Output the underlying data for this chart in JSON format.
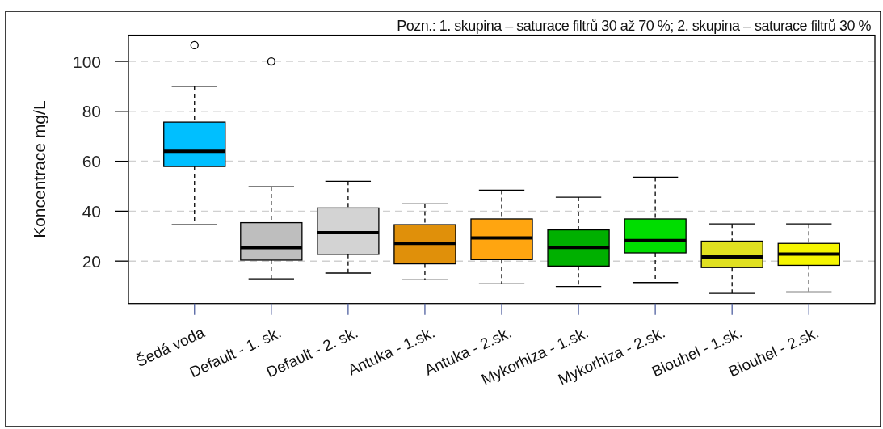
{
  "chart_data": {
    "type": "box",
    "ylabel": "Koncentrace mg/L",
    "annotations": [
      "Pozn.: 1. skupina – saturace filtrů 30 až 70 %; 2. skupina – saturace filtrů 30 %"
    ],
    "categories": [
      "Šedá voda",
      "Default - 1. sk.",
      "Default - 2. sk.",
      "Antuka - 1.sk.",
      "Antuka - 2.sk.",
      "Mykorhiza - 1.sk.",
      "Mykorhiza - 2.sk.",
      "Biouhel - 1.sk.",
      "Biouhel - 2.sk."
    ],
    "colors": [
      "#00bfff",
      "#bebebe",
      "#d3d3d3",
      "#e0900a",
      "#ffa510",
      "#00b000",
      "#00dd00",
      "#e0e020",
      "#f5f500"
    ],
    "boxes": [
      {
        "low": 34.6,
        "q1": 57.9,
        "median": 64,
        "q3": 75.7,
        "high": 90,
        "outliers": [
          106.5
        ]
      },
      {
        "low": 12.9,
        "q1": 20.4,
        "median": 25.4,
        "q3": 35.4,
        "high": 49.8,
        "outliers": [
          100
        ]
      },
      {
        "low": 15.2,
        "q1": 22.7,
        "median": 31.4,
        "q3": 41.3,
        "high": 52
      },
      {
        "low": 12.5,
        "q1": 18.9,
        "median": 27.1,
        "q3": 34.6,
        "high": 42.9
      },
      {
        "low": 10.9,
        "q1": 20.6,
        "median": 29.3,
        "q3": 36.9,
        "high": 48.4
      },
      {
        "low": 9.8,
        "q1": 18,
        "median": 25.5,
        "q3": 32.5,
        "high": 45.6
      },
      {
        "low": 11.4,
        "q1": 23.3,
        "median": 28.2,
        "q3": 36.9,
        "high": 53.6
      },
      {
        "low": 7.1,
        "q1": 17.4,
        "median": 21.7,
        "q3": 28,
        "high": 34.9
      },
      {
        "low": 7.6,
        "q1": 18.3,
        "median": 22.8,
        "q3": 27.1,
        "high": 34.9
      }
    ],
    "ylim": [
      3,
      110.5
    ],
    "yticks": [
      20,
      40,
      60,
      80,
      100
    ],
    "grid": "y"
  }
}
